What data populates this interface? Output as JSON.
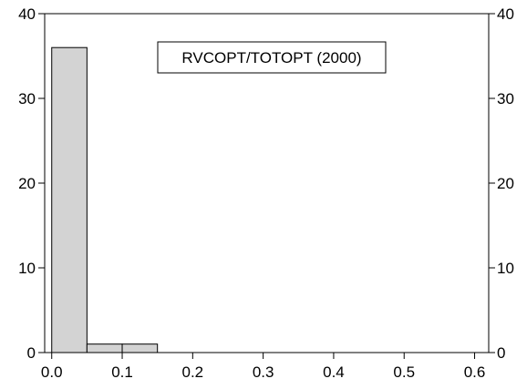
{
  "chart_data": {
    "type": "bar",
    "title": "",
    "legend_label": "RVCOPT/TOTOPT (2000)",
    "legend_position": "top-center",
    "xlabel": "",
    "ylabel": "",
    "xlim": [
      -0.01,
      0.62
    ],
    "ylim": [
      0,
      40
    ],
    "x_ticks": [
      0.0,
      0.1,
      0.2,
      0.3,
      0.4,
      0.5,
      0.6
    ],
    "x_tick_labels": [
      "0.0",
      "0.1",
      "0.2",
      "0.3",
      "0.4",
      "0.5",
      "0.6"
    ],
    "y_ticks": [
      0,
      10,
      20,
      30,
      40
    ],
    "y_tick_labels": [
      "0",
      "10",
      "20",
      "30",
      "40"
    ],
    "bin_width": 0.05,
    "bins": [
      {
        "start": 0.0,
        "end": 0.05,
        "count": 36
      },
      {
        "start": 0.05,
        "end": 0.1,
        "count": 1
      },
      {
        "start": 0.1,
        "end": 0.15,
        "count": 1
      },
      {
        "start": 0.15,
        "end": 0.2,
        "count": 0
      },
      {
        "start": 0.2,
        "end": 0.25,
        "count": 0
      },
      {
        "start": 0.25,
        "end": 0.3,
        "count": 0
      },
      {
        "start": 0.3,
        "end": 0.35,
        "count": 0
      },
      {
        "start": 0.35,
        "end": 0.4,
        "count": 0
      },
      {
        "start": 0.4,
        "end": 0.45,
        "count": 0
      },
      {
        "start": 0.45,
        "end": 0.5,
        "count": 0
      },
      {
        "start": 0.5,
        "end": 0.55,
        "count": 0
      },
      {
        "start": 0.55,
        "end": 0.6,
        "count": 0
      }
    ],
    "right_axis": true,
    "grid": false,
    "bar_fill": "#d3d3d3",
    "bar_stroke": "#000000"
  }
}
